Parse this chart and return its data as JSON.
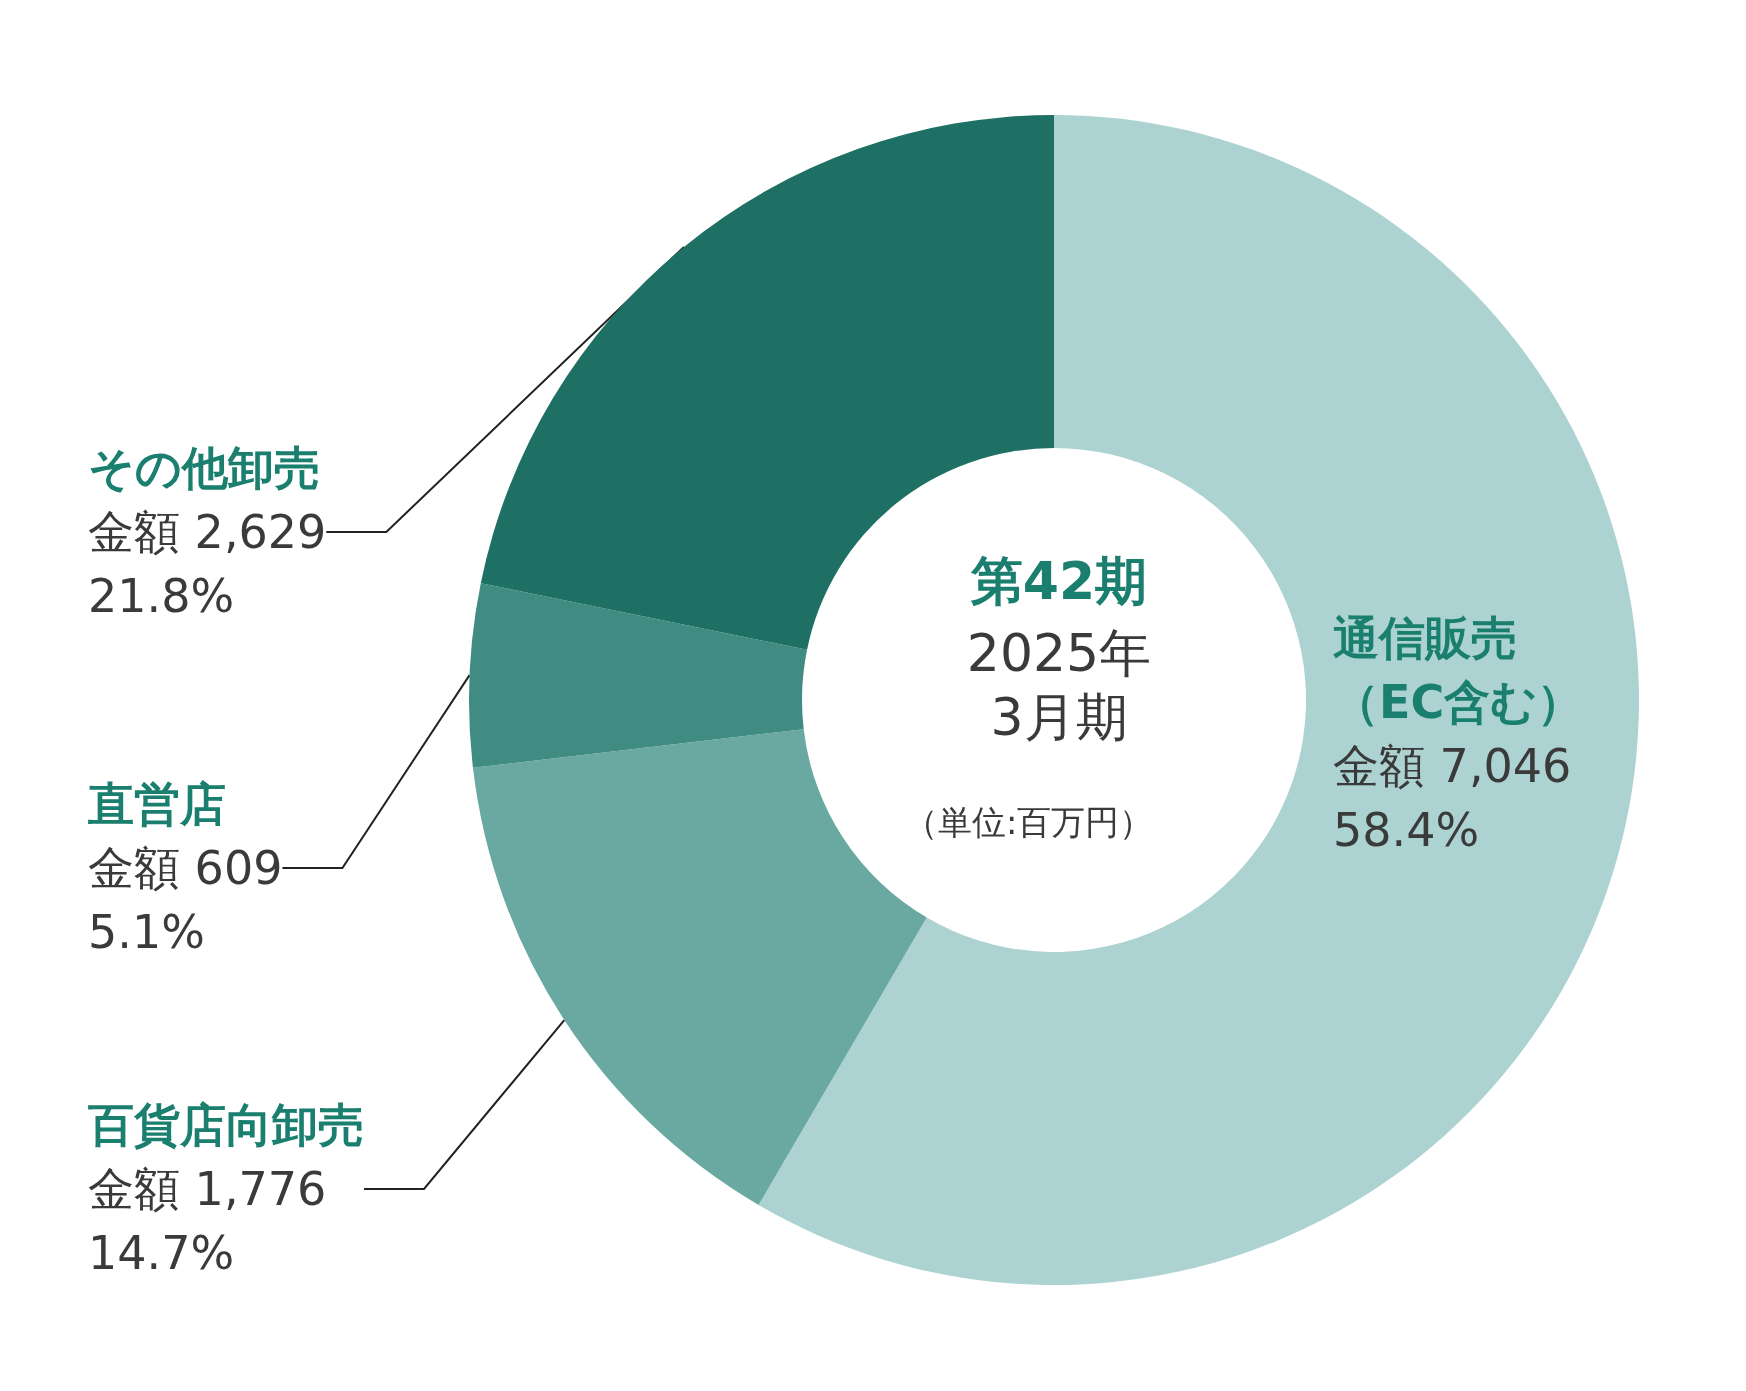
{
  "chart_data": {
    "type": "donut",
    "title": "第42期",
    "subtitle": "2025年\n3月期",
    "annotations": [
      "（単位:百万円）"
    ],
    "categories": [
      "通信販売（EC含む）",
      "百貨店向卸売",
      "直営店",
      "その他卸売"
    ],
    "values": [
      7046,
      1776,
      609,
      2629
    ],
    "colors": [
      "#acd3d2",
      "#6aa9a1",
      "#418c82",
      "#1f7064"
    ],
    "value_labels": [
      "金額 7,046\n58.4%",
      "金額 1,776\n14.7%",
      "金額 609\n5.1%",
      "金額 2,629\n21.8%"
    ],
    "legend": false
  }
}
